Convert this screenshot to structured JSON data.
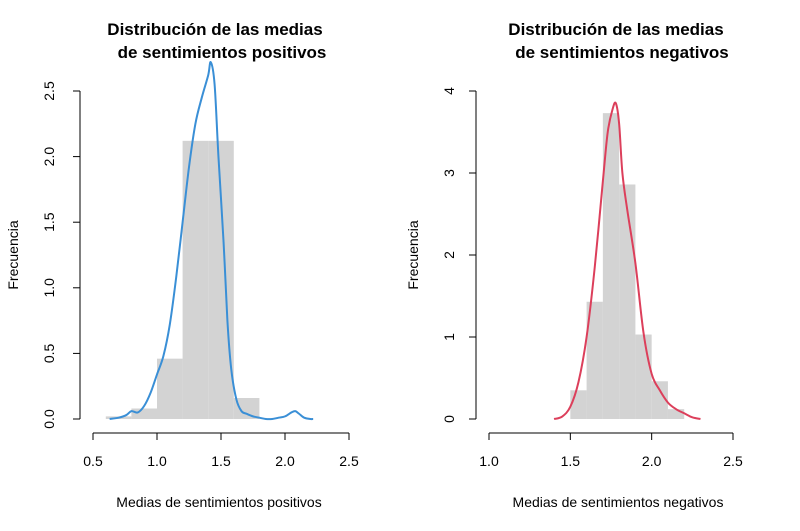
{
  "chart_data": [
    {
      "type": "histogram",
      "title": [
        "Distribución de las medias",
        "de sentimientos positivos"
      ],
      "xlabel": "Medias de sentimientos positivos",
      "ylabel": "Frecuencia",
      "xlim": [
        0.5,
        2.5
      ],
      "ylim": [
        0,
        2.5
      ],
      "x_ticks": [
        0.5,
        1.0,
        1.5,
        2.0,
        2.5
      ],
      "x_tick_labels": [
        "0.5",
        "1.0",
        "1.5",
        "2.0",
        "2.5"
      ],
      "y_ticks": [
        0.0,
        0.5,
        1.0,
        1.5,
        2.0,
        2.5
      ],
      "y_tick_labels": [
        "0.0",
        "0.5",
        "1.0",
        "1.5",
        "2.0",
        "2.5"
      ],
      "bar_color": "#d3d3d3",
      "line_color": "#3a8fd6",
      "bins": [
        {
          "start": 0.6,
          "end": 0.8,
          "value": 0.02
        },
        {
          "start": 0.8,
          "end": 1.0,
          "value": 0.08
        },
        {
          "start": 1.0,
          "end": 1.2,
          "value": 0.46
        },
        {
          "start": 1.2,
          "end": 1.4,
          "value": 2.12
        },
        {
          "start": 1.4,
          "end": 1.6,
          "value": 2.12
        },
        {
          "start": 1.6,
          "end": 1.8,
          "value": 0.16
        },
        {
          "start": 1.8,
          "end": 2.0,
          "value": 0.0
        },
        {
          "start": 2.0,
          "end": 2.2,
          "value": 0.0
        }
      ],
      "density": {
        "x": [
          0.63,
          0.7,
          0.76,
          0.8,
          0.85,
          0.9,
          0.95,
          1.0,
          1.05,
          1.1,
          1.15,
          1.2,
          1.25,
          1.3,
          1.35,
          1.4,
          1.42,
          1.45,
          1.48,
          1.52,
          1.55,
          1.58,
          1.62,
          1.66,
          1.7,
          1.75,
          1.8,
          1.85,
          1.9,
          1.95,
          2.0,
          2.05,
          2.08,
          2.11,
          2.15,
          2.2,
          2.22
        ],
        "y": [
          0.0,
          0.01,
          0.03,
          0.06,
          0.05,
          0.1,
          0.2,
          0.34,
          0.48,
          0.72,
          1.08,
          1.5,
          1.92,
          2.25,
          2.45,
          2.62,
          2.72,
          2.55,
          2.0,
          1.35,
          0.75,
          0.38,
          0.15,
          0.06,
          0.04,
          0.02,
          0.01,
          0.0,
          0.0,
          0.01,
          0.02,
          0.05,
          0.06,
          0.04,
          0.01,
          0.0,
          0.0
        ]
      }
    },
    {
      "type": "histogram",
      "title": [
        "Distribución de las medias",
        "de sentimientos negativos"
      ],
      "xlabel": "Medias de sentimientos negativos",
      "ylabel": "Frecuencia",
      "xlim": [
        1.0,
        2.5
      ],
      "ylim": [
        0,
        4
      ],
      "x_ticks": [
        1.0,
        1.5,
        2.0,
        2.5
      ],
      "x_tick_labels": [
        "1.0",
        "1.5",
        "2.0",
        "2.5"
      ],
      "y_ticks": [
        0,
        1,
        2,
        3,
        4
      ],
      "y_tick_labels": [
        "0",
        "1",
        "2",
        "3",
        "4"
      ],
      "bar_color": "#d3d3d3",
      "line_color": "#dc3f5b",
      "bins": [
        {
          "start": 1.5,
          "end": 1.6,
          "value": 0.35
        },
        {
          "start": 1.6,
          "end": 1.7,
          "value": 1.43
        },
        {
          "start": 1.7,
          "end": 1.8,
          "value": 3.73
        },
        {
          "start": 1.8,
          "end": 1.9,
          "value": 2.86
        },
        {
          "start": 1.9,
          "end": 2.0,
          "value": 1.03
        },
        {
          "start": 2.0,
          "end": 2.1,
          "value": 0.46
        },
        {
          "start": 2.1,
          "end": 2.2,
          "value": 0.12
        }
      ],
      "density": {
        "x": [
          1.4,
          1.45,
          1.5,
          1.55,
          1.6,
          1.65,
          1.7,
          1.73,
          1.76,
          1.78,
          1.8,
          1.82,
          1.85,
          1.9,
          1.95,
          2.0,
          2.05,
          2.1,
          2.15,
          2.2,
          2.25,
          2.3
        ],
        "y": [
          0.0,
          0.03,
          0.15,
          0.45,
          1.0,
          1.85,
          2.9,
          3.5,
          3.78,
          3.85,
          3.6,
          3.0,
          2.55,
          1.9,
          1.05,
          0.55,
          0.35,
          0.2,
          0.12,
          0.07,
          0.02,
          0.0
        ]
      }
    }
  ]
}
